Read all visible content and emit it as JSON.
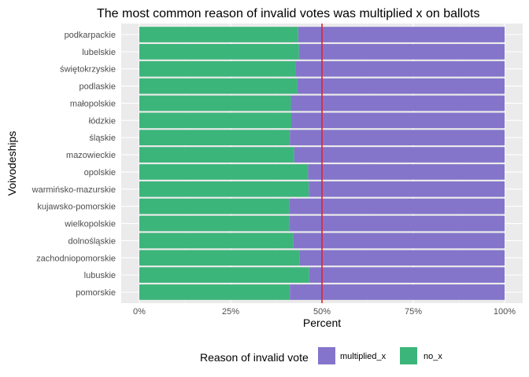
{
  "chart_data": {
    "type": "bar",
    "orientation": "horizontal",
    "stacked": true,
    "title": "The most common reason of invalid votes was multiplied x on ballots",
    "xlabel": "Percent",
    "ylabel": "Voivodeships",
    "xlim": [
      0,
      1
    ],
    "x_ticks": [
      "0%",
      "25%",
      "50%",
      "75%",
      "100%"
    ],
    "x_tick_values": [
      0,
      0.25,
      0.5,
      0.75,
      1.0
    ],
    "reference_line": {
      "x": 0.5,
      "color": "#e8202a"
    },
    "grid": true,
    "categories": [
      "podkarpackie",
      "lubelskie",
      "świętokrzyskie",
      "podlaskie",
      "małopolskie",
      "łódzkie",
      "śląskie",
      "mazowieckie",
      "opolskie",
      "warmińsko-mazurskie",
      "kujawsko-pomorskie",
      "wielkopolskie",
      "dolnośląskie",
      "zachodniopomorskie",
      "lubuskie",
      "pomorskie"
    ],
    "series": [
      {
        "name": "no_x",
        "color": "#3cb57a",
        "values": [
          0.435,
          0.437,
          0.427,
          0.433,
          0.415,
          0.416,
          0.412,
          0.424,
          0.462,
          0.464,
          0.41,
          0.41,
          0.421,
          0.438,
          0.465,
          0.412
        ]
      },
      {
        "name": "multiplied_x",
        "color": "#8475cb",
        "values": [
          0.565,
          0.563,
          0.573,
          0.567,
          0.585,
          0.584,
          0.588,
          0.576,
          0.538,
          0.536,
          0.59,
          0.59,
          0.579,
          0.562,
          0.535,
          0.588
        ]
      }
    ],
    "legend": {
      "title": "Reason of invalid vote",
      "placement": "bottom",
      "entries": [
        "multiplied_x",
        "no_x"
      ]
    }
  }
}
